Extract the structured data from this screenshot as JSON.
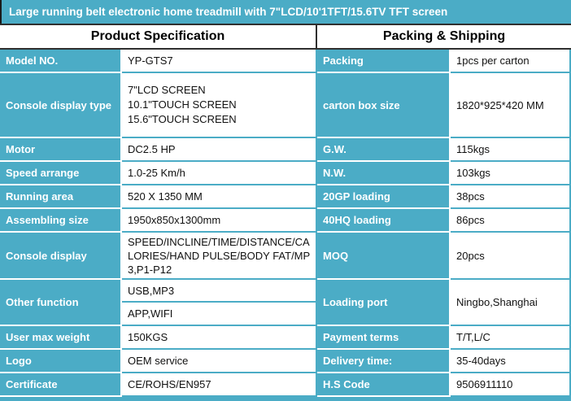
{
  "title": "Large running belt electronic home treadmill with 7\"LCD/10'1TFT/15.6TV TFT screen",
  "headers": {
    "left": "Product Specification",
    "right": "Packing & Shipping"
  },
  "colors": {
    "accent_teal": "#4BACC6",
    "header_border": "#2f2f2f",
    "label_text": "#ffffff",
    "value_text": "#111111"
  },
  "rows": [
    {
      "l_label": "Model NO.",
      "l_value": "YP-GTS7",
      "r_label": "Packing",
      "r_value": "1pcs per carton"
    },
    {
      "l_label": "Console display type",
      "l_value_lines": [
        "7\"LCD SCREEN",
        "10.1\"TOUCH SCREEN",
        "15.6\"TOUCH SCREEN"
      ],
      "r_label": "carton box size",
      "r_value": "1820*925*420 MM"
    },
    {
      "l_label": "Motor",
      "l_value": "DC2.5 HP",
      "r_label": "G.W.",
      "r_value": "115kgs"
    },
    {
      "l_label": "Speed arrange",
      "l_value": "1.0-25 Km/h",
      "r_label": "N.W.",
      "r_value": "103kgs"
    },
    {
      "l_label": "Running area",
      "l_value": "520 X 1350 MM",
      "r_label": "20GP loading",
      "r_value": "38pcs"
    },
    {
      "l_label": "Assembling size",
      "l_value": "1950x850x1300mm",
      "r_label": "40HQ loading",
      "r_value": "86pcs"
    },
    {
      "l_label": "Console display",
      "l_value": "SPEED/INCLINE/TIME/DISTANCE/CALORIES/HAND PULSE/BODY FAT/MP3,P1-P12",
      "r_label": "MOQ",
      "r_value": "20pcs"
    },
    {
      "l_label": "Other function",
      "l_values": [
        "USB,MP3",
        "APP,WIFI"
      ],
      "r_label": "Loading port",
      "r_value": "Ningbo,Shanghai"
    },
    {
      "l_label": "User max weight",
      "l_value": "150KGS",
      "r_label": "Payment terms",
      "r_value": "T/T,L/C"
    },
    {
      "l_label": "Logo",
      "l_value": "OEM service",
      "r_label": "Delivery time:",
      "r_value": "35-40days"
    },
    {
      "l_label": "Certificate",
      "l_value": "CE/ROHS/EN957",
      "r_label": "H.S Code",
      "r_value": "9506911110"
    }
  ]
}
